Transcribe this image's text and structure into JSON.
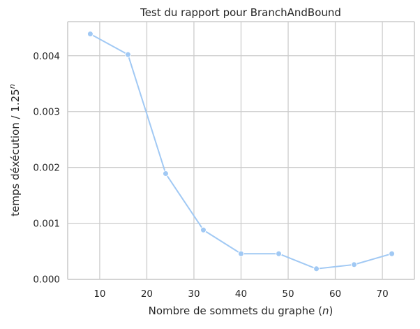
{
  "colors": {
    "line": "#a1c9f4",
    "grid": "#cccccc",
    "axis_text": "#262626",
    "background": "#ffffff"
  },
  "chart_data": {
    "type": "line",
    "title": "Test du rapport pour BranchAndBound",
    "xlabel": "Nombre de sommets du graphe (",
    "xlabel_var": "n",
    "xlabel_end": ")",
    "ylabel": "temps déxécution / 1.25",
    "ylabel_sup": "n",
    "x": [
      8,
      16,
      24,
      32,
      40,
      48,
      56,
      64,
      72
    ],
    "y": [
      0.00439,
      0.00402,
      0.00189,
      0.00088,
      0.000455,
      0.000455,
      0.000185,
      0.00026,
      0.000455
    ],
    "xlim": [
      3.2,
      76.8
    ],
    "ylim": [
      -5e-06,
      0.00461
    ],
    "xticks": [
      10,
      20,
      30,
      40,
      50,
      60,
      70
    ],
    "xtick_labels": [
      "10",
      "20",
      "30",
      "40",
      "50",
      "60",
      "70"
    ],
    "yticks": [
      0.0,
      0.001,
      0.002,
      0.003,
      0.004
    ],
    "ytick_labels": [
      "0.000",
      "0.001",
      "0.002",
      "0.003",
      "0.004"
    ],
    "grid": true,
    "marker": "circle"
  }
}
